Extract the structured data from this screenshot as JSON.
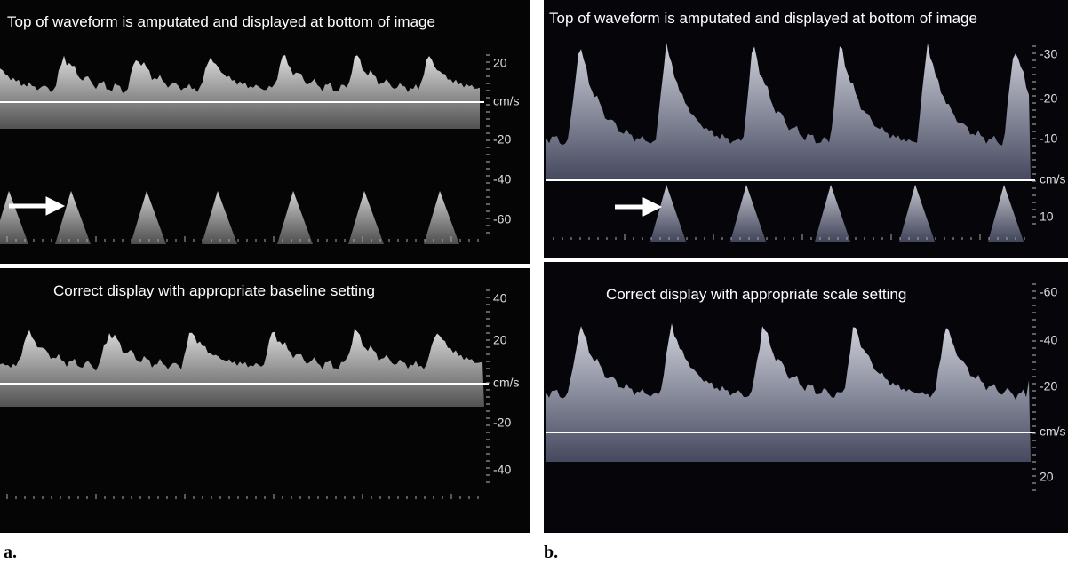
{
  "panels": [
    {
      "label": "a.",
      "top": {
        "caption": "Top of waveform is amputated and displayed at bottom of image",
        "scale": [
          "20",
          "cm/s",
          "-20",
          "-40",
          "-60"
        ]
      },
      "bottom": {
        "caption": "Correct display with appropriate baseline setting",
        "scale": [
          "40",
          "20",
          "cm/s",
          "-20",
          "-40"
        ]
      }
    },
    {
      "label": "b.",
      "top": {
        "caption": "Top of waveform is amputated and displayed at bottom of image",
        "scale": [
          "-30",
          "-20",
          "-10",
          "cm/s",
          "10"
        ]
      },
      "bottom": {
        "caption": "Correct display with appropriate scale setting",
        "scale": [
          "-60",
          "-40",
          "-20",
          "cm/s",
          "20"
        ]
      }
    }
  ]
}
